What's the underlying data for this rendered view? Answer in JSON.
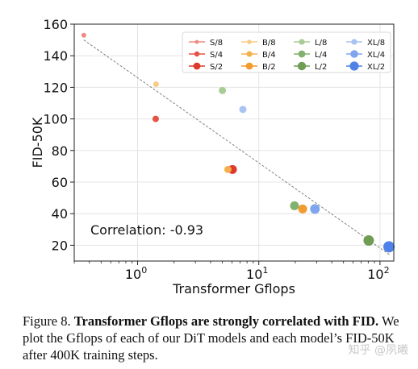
{
  "chart_data": {
    "type": "scatter",
    "xlabel": "Transformer Gflops",
    "ylabel": "FID-50K",
    "xscale": "log",
    "xlim": [
      0.3,
      130
    ],
    "ylim": [
      10,
      160
    ],
    "xticks": [
      {
        "value": 1,
        "label": "10^0"
      },
      {
        "value": 10,
        "label": "10^1"
      },
      {
        "value": 100,
        "label": "10^2"
      }
    ],
    "yticks": [
      20,
      40,
      60,
      80,
      100,
      120,
      140,
      160
    ],
    "grid": true,
    "legend_position": "top-right",
    "legend_columns": 4,
    "annotation": "Correlation: -0.93",
    "trendline": {
      "x": [
        0.36,
        120
      ],
      "y": [
        150,
        14
      ]
    },
    "series": [
      {
        "name": "S/8",
        "color": "#f08a82",
        "size": 3,
        "points": [
          {
            "x": 0.36,
            "y": 153
          }
        ]
      },
      {
        "name": "S/4",
        "color": "#e65245",
        "size": 4,
        "points": [
          {
            "x": 1.41,
            "y": 100
          }
        ]
      },
      {
        "name": "S/2",
        "color": "#dd3a2c",
        "size": 5.5,
        "points": [
          {
            "x": 6.06,
            "y": 68
          }
        ]
      },
      {
        "name": "B/8",
        "color": "#f7cd85",
        "size": 3.5,
        "points": [
          {
            "x": 1.42,
            "y": 122
          }
        ]
      },
      {
        "name": "B/4",
        "color": "#f5b04e",
        "size": 4.5,
        "points": [
          {
            "x": 5.56,
            "y": 68
          }
        ]
      },
      {
        "name": "B/2",
        "color": "#f29b2e",
        "size": 5.5,
        "points": [
          {
            "x": 23.01,
            "y": 43
          }
        ]
      },
      {
        "name": "L/8",
        "color": "#a8cc96",
        "size": 4.5,
        "points": [
          {
            "x": 5.01,
            "y": 118
          }
        ]
      },
      {
        "name": "L/4",
        "color": "#82b06e",
        "size": 5.5,
        "points": [
          {
            "x": 19.7,
            "y": 45
          }
        ]
      },
      {
        "name": "L/2",
        "color": "#6f9d55",
        "size": 6.5,
        "points": [
          {
            "x": 80.71,
            "y": 23
          }
        ]
      },
      {
        "name": "XL/8",
        "color": "#a9c3f2",
        "size": 4.5,
        "points": [
          {
            "x": 7.39,
            "y": 106
          }
        ]
      },
      {
        "name": "XL/4",
        "color": "#7ea5ee",
        "size": 6,
        "points": [
          {
            "x": 29.05,
            "y": 43
          }
        ]
      },
      {
        "name": "XL/2",
        "color": "#4f81e8",
        "size": 7,
        "points": [
          {
            "x": 118.64,
            "y": 19
          }
        ]
      }
    ]
  },
  "caption": {
    "label": "Figure 8.",
    "bold_text": "Transformer Gflops are strongly correlated with FID.",
    "body_text": "We plot the Gflops of each of our DiT models and each model’s FID-50K after 400K training steps."
  },
  "watermark": "知乎 @夙曦"
}
